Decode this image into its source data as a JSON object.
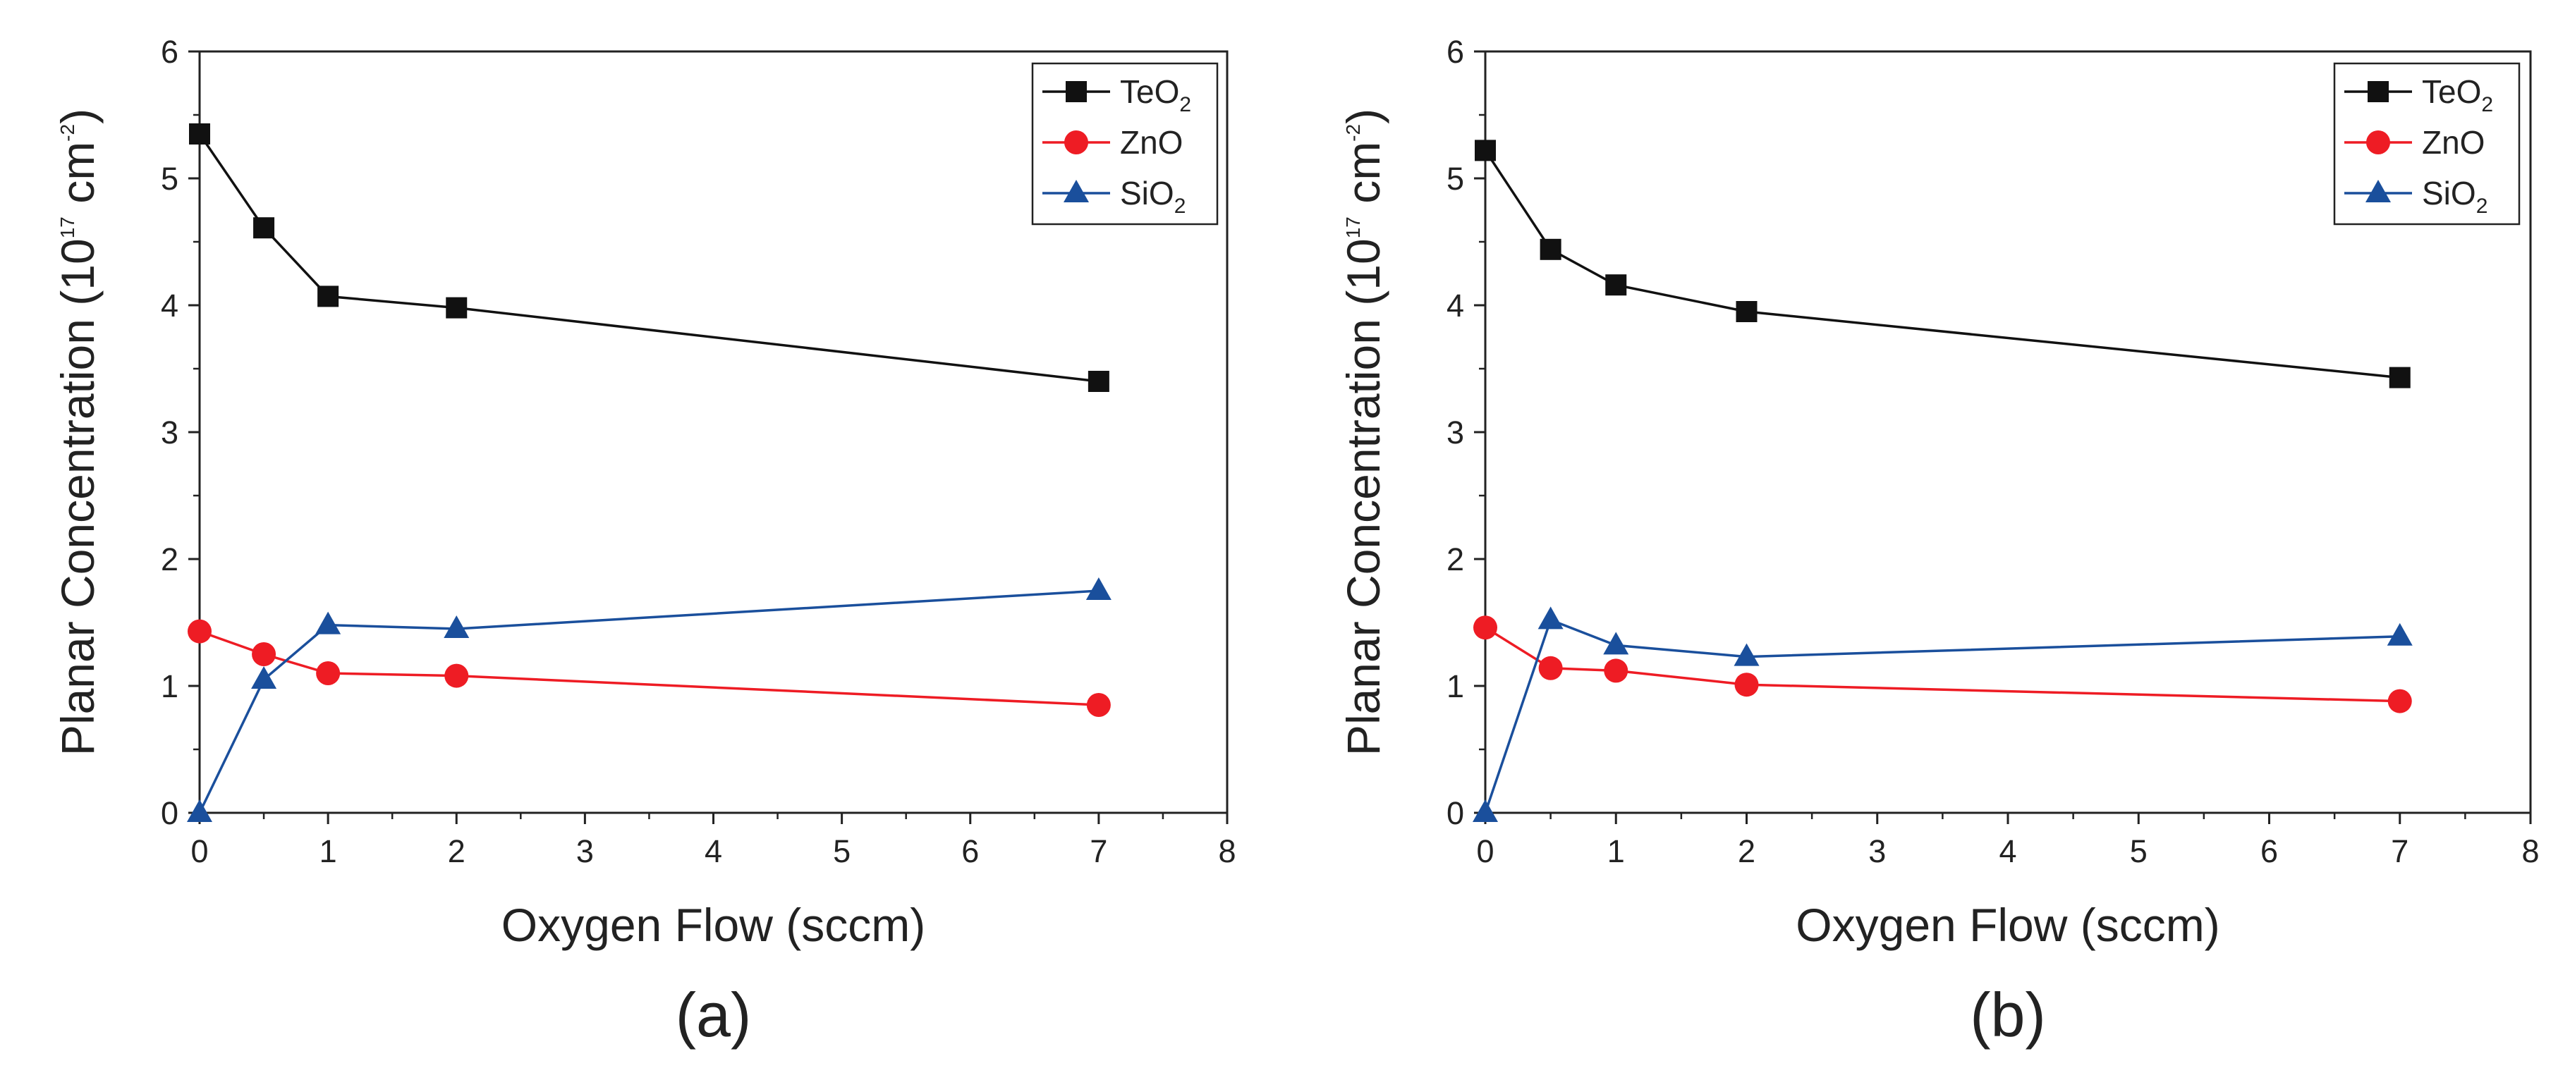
{
  "chart_data": [
    {
      "type": "line",
      "panel_label": "(a)",
      "xlabel": "Oxygen Flow (sccm)",
      "ylabel": {
        "main": "Planar Concentration (10",
        "exponent": "17",
        "unit_mid": " cm",
        "unit_exponent": "-2",
        "close": ")"
      },
      "xlim": [
        0,
        8
      ],
      "ylim": [
        0,
        6
      ],
      "xticks": [
        0,
        1,
        2,
        3,
        4,
        5,
        6,
        7,
        8
      ],
      "yticks": [
        0,
        1,
        2,
        3,
        4,
        5,
        6
      ],
      "grid": false,
      "legend_position": "top-right",
      "series": [
        {
          "name": "TeO",
          "subscript": "2",
          "color": "#111111",
          "marker": "square",
          "x": [
            0,
            0.5,
            1,
            2,
            7
          ],
          "y": [
            5.35,
            4.61,
            4.07,
            3.98,
            3.4
          ]
        },
        {
          "name": "ZnO",
          "subscript": "",
          "color": "#ee1c24",
          "marker": "circle",
          "x": [
            0,
            0.5,
            1,
            2,
            7
          ],
          "y": [
            1.43,
            1.25,
            1.1,
            1.08,
            0.85
          ]
        },
        {
          "name": "SiO",
          "subscript": "2",
          "color": "#1a4f9c",
          "marker": "triangle",
          "x": [
            0,
            0.5,
            1,
            2,
            7
          ],
          "y": [
            0.0,
            1.05,
            1.48,
            1.45,
            1.75
          ]
        }
      ]
    },
    {
      "type": "line",
      "panel_label": "(b)",
      "xlabel": "Oxygen Flow (sccm)",
      "ylabel": {
        "main": "Planar Concentration (10",
        "exponent": "17",
        "unit_mid": " cm",
        "unit_exponent": "-2",
        "close": ")"
      },
      "xlim": [
        0,
        8
      ],
      "ylim": [
        0,
        6
      ],
      "xticks": [
        0,
        1,
        2,
        3,
        4,
        5,
        6,
        7,
        8
      ],
      "yticks": [
        0,
        1,
        2,
        3,
        4,
        5,
        6
      ],
      "grid": false,
      "legend_position": "top-right",
      "series": [
        {
          "name": "TeO",
          "subscript": "2",
          "color": "#111111",
          "marker": "square",
          "x": [
            0,
            0.5,
            1,
            2,
            7
          ],
          "y": [
            5.22,
            4.44,
            4.16,
            3.95,
            3.43
          ]
        },
        {
          "name": "ZnO",
          "subscript": "",
          "color": "#ee1c24",
          "marker": "circle",
          "x": [
            0,
            0.5,
            1,
            2,
            7
          ],
          "y": [
            1.46,
            1.14,
            1.12,
            1.01,
            0.88
          ]
        },
        {
          "name": "SiO",
          "subscript": "2",
          "color": "#1a4f9c",
          "marker": "triangle",
          "x": [
            0,
            0.5,
            1,
            2,
            7
          ],
          "y": [
            0.0,
            1.52,
            1.32,
            1.23,
            1.39
          ]
        }
      ]
    }
  ]
}
